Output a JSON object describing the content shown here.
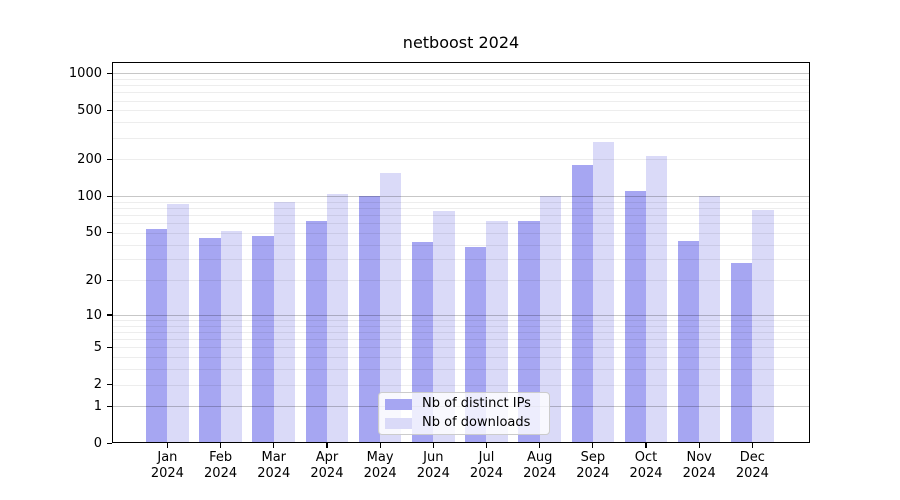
{
  "title": "netboost 2024",
  "chart_data": {
    "type": "bar",
    "title": "netboost 2024",
    "categories": [
      "Jan 2024",
      "Feb 2024",
      "Mar 2024",
      "Apr 2024",
      "May 2024",
      "Jun 2024",
      "Jul 2024",
      "Aug 2024",
      "Sep 2024",
      "Oct 2024",
      "Nov 2024",
      "Dec 2024"
    ],
    "x_axis": {
      "months": [
        "Jan",
        "Feb",
        "Mar",
        "Apr",
        "May",
        "Jun",
        "Jul",
        "Aug",
        "Sep",
        "Oct",
        "Nov",
        "Dec"
      ],
      "year": "2024"
    },
    "series": [
      {
        "name": "Nb of distinct IPs",
        "color": "#a6a6f2",
        "values": [
          54,
          45,
          47,
          62,
          100,
          42,
          38,
          63,
          180,
          111,
          43,
          28
        ]
      },
      {
        "name": "Nb of downloads",
        "color": "#dadaf8",
        "values": [
          87,
          52,
          90,
          105,
          155,
          76,
          62,
          100,
          278,
          213,
          100,
          77
        ]
      }
    ],
    "y_scale": "log1p",
    "y_ticks": [
      0,
      1,
      2,
      5,
      10,
      20,
      50,
      100,
      200,
      500,
      1000
    ],
    "ylim": [
      0,
      1233
    ],
    "grid": "horizontal, minor + major (at 1, 10, 100, 1000)",
    "legend_position": "lower center",
    "xlabel": "",
    "ylabel": ""
  },
  "colors": {
    "background": "#ffffff",
    "axis": "#000000",
    "grid_major": "#c6c6c6",
    "grid_minor": "#ececec",
    "legend_border": "#cccccc",
    "series_ips": "#a6a6f2",
    "series_downloads": "#dadaf8"
  }
}
